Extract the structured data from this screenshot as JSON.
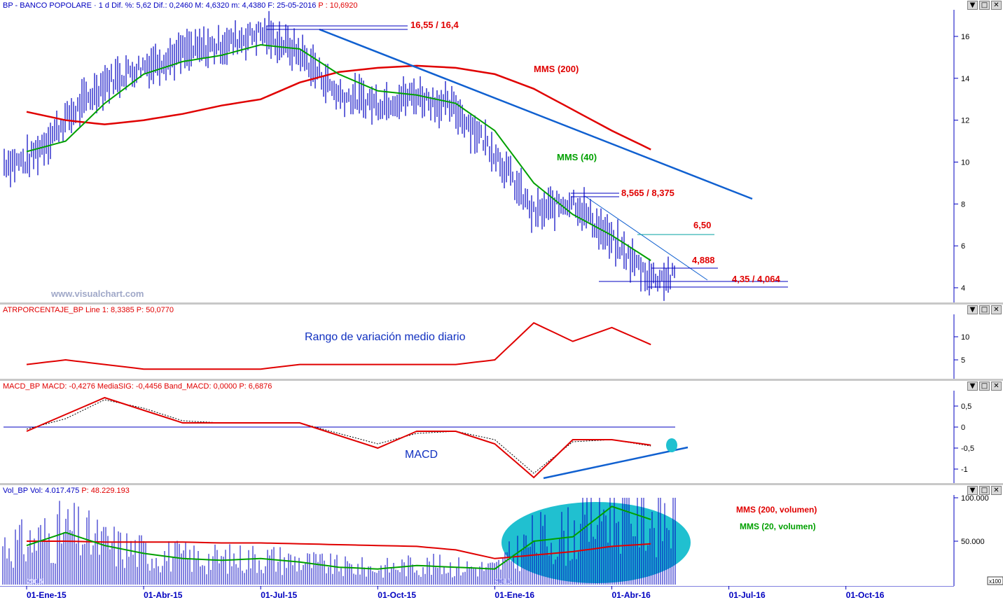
{
  "main": {
    "title_name": "BP - BANCO POPOLARE · 1 d Dif. %: 5,62 Dif.: 0,2460 M: 4,6320 m: 4,4380 F: 25-05-2016",
    "title_price": "P : 10,6920",
    "watermark": "www.visualchart.com",
    "labels": {
      "high": "16,55 / 16,4",
      "mms200": "MMS (200)",
      "mms40": "MMS (40)",
      "l8565": "8,565 / 8,375",
      "l650": "6,50",
      "l4888": "4,888",
      "l435": "4,35 / 4,064"
    },
    "yticks": [
      "16",
      "14",
      "12",
      "10",
      "8",
      "6",
      "4"
    ]
  },
  "atr": {
    "title_name": "ATRPORCENTAJE_BP Line 1: 8,3385",
    "title_price": "P: 50,0770",
    "annotation": "Rango de variación medio diario",
    "yticks": [
      "10",
      "5"
    ]
  },
  "macd": {
    "title_name": "MACD_BP MACD: -0,4276 MediaSIG: -0,4456 Band_MACD: 0,0000",
    "title_price": "P: 6,6876",
    "annotation": "MACD",
    "yticks": [
      "0,5",
      "0",
      "-0,5",
      "-1"
    ]
  },
  "vol": {
    "title_name": "Vol_BP Vol: 4.017.475",
    "title_price": "P: 48.229.193",
    "label_mms200": "MMS (200, volumen)",
    "label_mms20": "MMS (20, volumen)",
    "yticks": [
      "100.000",
      "50.000"
    ],
    "scale_tag": "x100",
    "year_tags": [
      "2015",
      "2016"
    ]
  },
  "xaxis": [
    "01-Ene-15",
    "01-Abr-15",
    "01-Jul-15",
    "01-Oct-15",
    "01-Ene-16",
    "01-Abr-16",
    "01-Jul-16",
    "01-Oct-16"
  ],
  "buttons": {
    "min": "▼",
    "max": "□",
    "close": "✕"
  },
  "colors": {
    "price": "#0000c0",
    "mms200": "#e00000",
    "mms40": "#00a000",
    "trend": "#1060d0",
    "volume_highlight": "#20c0d0"
  },
  "chart_data": [
    {
      "type": "line",
      "title": "BP - BANCO POPOLARE",
      "x": [
        "2015-01-01",
        "2015-02-01",
        "2015-03-01",
        "2015-04-01",
        "2015-05-01",
        "2015-06-01",
        "2015-07-01",
        "2015-08-01",
        "2015-09-01",
        "2015-10-01",
        "2015-11-01",
        "2015-12-01",
        "2016-01-01",
        "2016-02-01",
        "2016-03-01",
        "2016-04-01",
        "2016-05-01"
      ],
      "series": [
        {
          "name": "Price",
          "values": [
            10.0,
            12.0,
            13.8,
            14.6,
            15.2,
            15.6,
            16.2,
            15.2,
            13.2,
            12.8,
            13.2,
            12.5,
            10.5,
            7.5,
            8.2,
            6.2,
            4.5
          ]
        },
        {
          "name": "MMS (40)",
          "values": [
            10.5,
            11.0,
            12.8,
            14.2,
            14.8,
            15.1,
            15.6,
            15.4,
            14.2,
            13.4,
            13.2,
            12.8,
            11.5,
            9.0,
            7.5,
            6.5,
            5.3
          ]
        },
        {
          "name": "MMS (200)",
          "values": [
            12.4,
            12.0,
            11.8,
            12.0,
            12.3,
            12.7,
            13.0,
            13.8,
            14.3,
            14.5,
            14.6,
            14.5,
            14.2,
            13.5,
            12.5,
            11.5,
            10.6
          ]
        }
      ],
      "ylim": [
        3.5,
        17
      ]
    },
    {
      "type": "line",
      "title": "ATRPORCENTAJE_BP",
      "series": [
        {
          "name": "Line 1",
          "values": [
            4,
            5,
            4,
            3,
            3,
            3,
            3,
            4,
            4,
            4,
            4,
            4,
            5,
            13,
            9,
            12,
            8.3
          ]
        }
      ]
    },
    {
      "type": "line",
      "title": "MACD_BP",
      "series": [
        {
          "name": "MACD",
          "values": [
            -0.1,
            0.3,
            0.7,
            0.4,
            0.1,
            0.1,
            0.1,
            0.1,
            -0.2,
            -0.5,
            -0.1,
            -0.1,
            -0.4,
            -1.2,
            -0.3,
            -0.3,
            -0.43
          ]
        },
        {
          "name": "MediaSIG",
          "values": [
            -0.05,
            0.2,
            0.65,
            0.45,
            0.15,
            0.1,
            0.1,
            0.1,
            -0.15,
            -0.4,
            -0.15,
            -0.1,
            -0.3,
            -1.1,
            -0.35,
            -0.3,
            -0.45
          ]
        }
      ],
      "ylim": [
        -1.3,
        0.8
      ]
    },
    {
      "type": "bar",
      "title": "Vol_BP",
      "series": [
        {
          "name": "MMS (200, volumen)",
          "values": [
            50,
            50,
            49,
            49,
            49,
            48,
            48,
            47,
            46,
            45,
            44,
            40,
            30,
            34,
            38,
            44,
            47
          ]
        },
        {
          "name": "MMS (20, volumen)",
          "values": [
            45,
            60,
            45,
            36,
            30,
            28,
            30,
            26,
            20,
            18,
            22,
            20,
            18,
            50,
            55,
            90,
            75
          ]
        }
      ],
      "ylim": [
        0,
        100
      ]
    }
  ]
}
